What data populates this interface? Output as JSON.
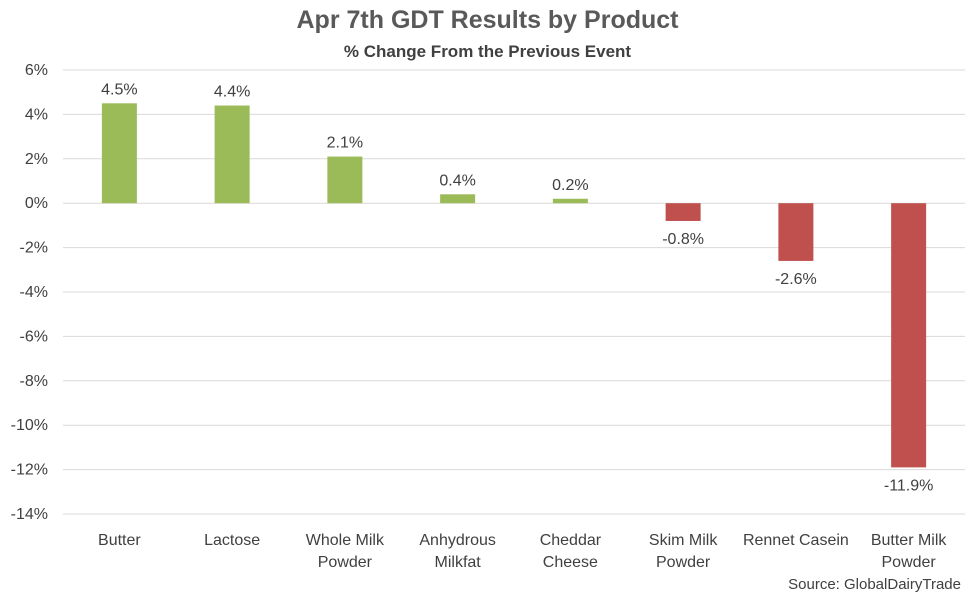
{
  "chart_data": {
    "type": "bar",
    "title": "Apr 7th GDT Results by Product",
    "subtitle": "% Change From the Previous Event",
    "categories": [
      "Butter",
      "Lactose",
      "Whole Milk Powder",
      "Anhydrous Milkfat",
      "Cheddar Cheese",
      "Skim Milk Powder",
      "Rennet Casein",
      "Butter Milk Powder"
    ],
    "category_lines": [
      [
        "Butter"
      ],
      [
        "Lactose"
      ],
      [
        "Whole Milk",
        "Powder"
      ],
      [
        "Anhydrous",
        "Milkfat"
      ],
      [
        "Cheddar",
        "Cheese"
      ],
      [
        "Skim Milk",
        "Powder"
      ],
      [
        "Rennet Casein"
      ],
      [
        "Butter Milk",
        "Powder"
      ]
    ],
    "values": [
      4.5,
      4.4,
      2.1,
      0.4,
      0.2,
      -0.8,
      -2.6,
      -11.9
    ],
    "data_labels": [
      "4.5%",
      "4.4%",
      "2.1%",
      "0.4%",
      "0.2%",
      "-0.8%",
      "-2.6%",
      "-11.9%"
    ],
    "ylim": [
      -14,
      6
    ],
    "yticks": [
      6,
      4,
      2,
      0,
      -2,
      -4,
      -6,
      -8,
      -10,
      -12,
      -14
    ],
    "ytick_labels": [
      "6%",
      "4%",
      "2%",
      "0%",
      "-2%",
      "-4%",
      "-6%",
      "-8%",
      "-10%",
      "-12%",
      "-14%"
    ],
    "xlabel": "",
    "ylabel": "",
    "grid": true,
    "legend": "none",
    "colors": {
      "positive": "#9bbb59",
      "negative": "#c0504d",
      "grid": "#d9d9d9",
      "text": "#404040"
    }
  },
  "source": "Source: GlobalDairyTrade"
}
